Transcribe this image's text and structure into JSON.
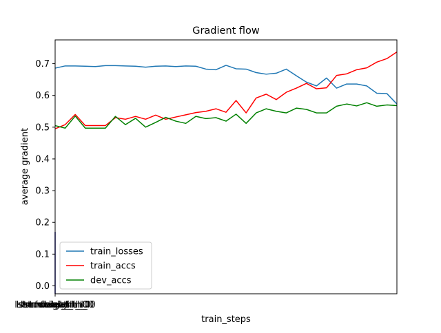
{
  "chart_data": {
    "type": "line",
    "title": "Gradient flow",
    "xlabel": "train_steps",
    "ylabel": "average gradient",
    "ylim": [
      -0.025,
      0.775
    ],
    "yticks": [
      0.0,
      0.1,
      0.2,
      0.3,
      0.4,
      0.5,
      0.6,
      0.7
    ],
    "ytick_labels": [
      "0.0",
      "0.1",
      "0.2",
      "0.3",
      "0.4",
      "0.5",
      "0.6",
      "0.7"
    ],
    "xtick_labels": [
      "lstm.weight_ih_l0",
      "lstm.weight_hh_l0",
      "lstm.bias_ih_l0",
      "lstm.bias_hh_l0",
      "fc.weight",
      "fc.bias"
    ],
    "grid": false,
    "legend_position": "lower-left",
    "series": [
      {
        "name": "train_losses",
        "color": "#1f77b4",
        "values": [
          0.686,
          0.693,
          0.693,
          0.692,
          0.691,
          0.694,
          0.694,
          0.693,
          0.692,
          0.689,
          0.692,
          0.693,
          0.691,
          0.693,
          0.692,
          0.683,
          0.681,
          0.695,
          0.684,
          0.683,
          0.672,
          0.667,
          0.67,
          0.683,
          0.662,
          0.642,
          0.63,
          0.655,
          0.623,
          0.636,
          0.636,
          0.63,
          0.607,
          0.606,
          0.573
        ]
      },
      {
        "name": "train_accs",
        "color": "#ff0000",
        "values": [
          0.495,
          0.508,
          0.54,
          0.505,
          0.505,
          0.505,
          0.53,
          0.525,
          0.534,
          0.525,
          0.538,
          0.525,
          0.532,
          0.539,
          0.546,
          0.55,
          0.558,
          0.547,
          0.584,
          0.545,
          0.592,
          0.604,
          0.587,
          0.61,
          0.623,
          0.638,
          0.621,
          0.624,
          0.663,
          0.668,
          0.681,
          0.687,
          0.705,
          0.716,
          0.737
        ]
      },
      {
        "name": "dev_accs",
        "color": "#008000",
        "values": [
          0.505,
          0.497,
          0.535,
          0.497,
          0.497,
          0.497,
          0.534,
          0.508,
          0.528,
          0.5,
          0.515,
          0.531,
          0.519,
          0.512,
          0.534,
          0.527,
          0.53,
          0.519,
          0.541,
          0.512,
          0.545,
          0.558,
          0.55,
          0.545,
          0.56,
          0.556,
          0.545,
          0.545,
          0.566,
          0.573,
          0.567,
          0.577,
          0.566,
          0.57,
          0.568
        ]
      }
    ]
  }
}
